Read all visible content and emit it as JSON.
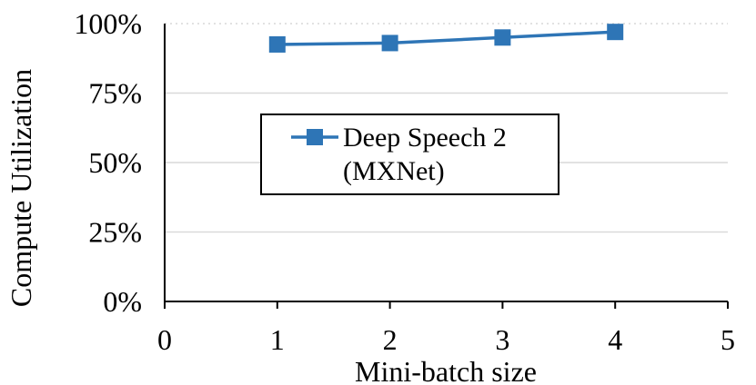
{
  "chart_data": {
    "type": "line",
    "xlabel": "Mini-batch size",
    "ylabel": "Compute Utilization",
    "xlim": [
      0,
      5
    ],
    "ylim": [
      0,
      100
    ],
    "x_ticks": [
      "0",
      "1",
      "2",
      "3",
      "4",
      "5"
    ],
    "y_ticks": [
      "0%",
      "25%",
      "50%",
      "75%",
      "100%"
    ],
    "grid": true,
    "legend_placement": "center",
    "series": [
      {
        "name": "Deep Speech 2 (MXNet)",
        "legend_lines": [
          "Deep Speech 2",
          "(MXNet)"
        ],
        "color": "#2e75b6",
        "marker": "square",
        "x": [
          1,
          2,
          3,
          4
        ],
        "y": [
          92.5,
          93,
          95,
          97
        ]
      }
    ]
  }
}
